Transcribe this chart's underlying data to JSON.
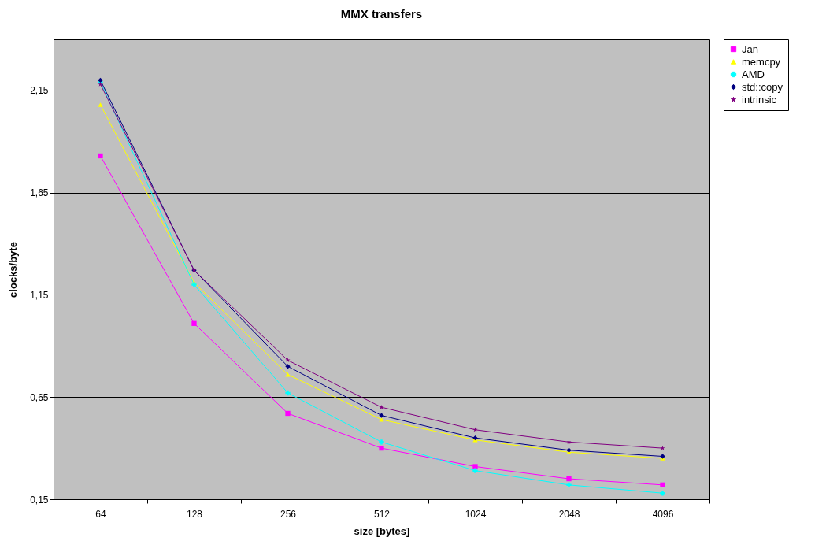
{
  "chart_data": {
    "type": "line",
    "title": "MMX transfers",
    "xlabel": "size [bytes]",
    "ylabel": "clocks/byte",
    "categories": [
      "64",
      "128",
      "256",
      "512",
      "1024",
      "2048",
      "4096"
    ],
    "series": [
      {
        "name": "Jan",
        "color": "#ff00ff",
        "marker": "square",
        "values": [
          1.83,
          1.01,
          0.57,
          0.4,
          0.31,
          0.25,
          0.22
        ]
      },
      {
        "name": "memcpy",
        "color": "#ffff00",
        "marker": "triangle",
        "values": [
          2.08,
          1.21,
          0.76,
          0.54,
          0.44,
          0.38,
          0.35
        ]
      },
      {
        "name": "AMD",
        "color": "#00ffff",
        "marker": "cross",
        "values": [
          2.19,
          1.2,
          0.67,
          0.43,
          0.29,
          0.22,
          0.18
        ]
      },
      {
        "name": "std::copy",
        "color": "#000080",
        "marker": "diamond",
        "values": [
          2.2,
          1.27,
          0.8,
          0.56,
          0.45,
          0.39,
          0.36
        ]
      },
      {
        "name": "intrinsic",
        "color": "#800080",
        "marker": "star",
        "values": [
          2.18,
          1.27,
          0.83,
          0.6,
          0.49,
          0.43,
          0.4
        ]
      }
    ],
    "ylim": [
      0.15,
      2.4
    ],
    "yticks": [
      {
        "value": 0.15,
        "label": "0,15"
      },
      {
        "value": 0.65,
        "label": "0,65"
      },
      {
        "value": 1.15,
        "label": "1,15"
      },
      {
        "value": 1.65,
        "label": "1,65"
      },
      {
        "value": 2.15,
        "label": "2,15"
      }
    ],
    "grid": "y",
    "legend": "right"
  }
}
